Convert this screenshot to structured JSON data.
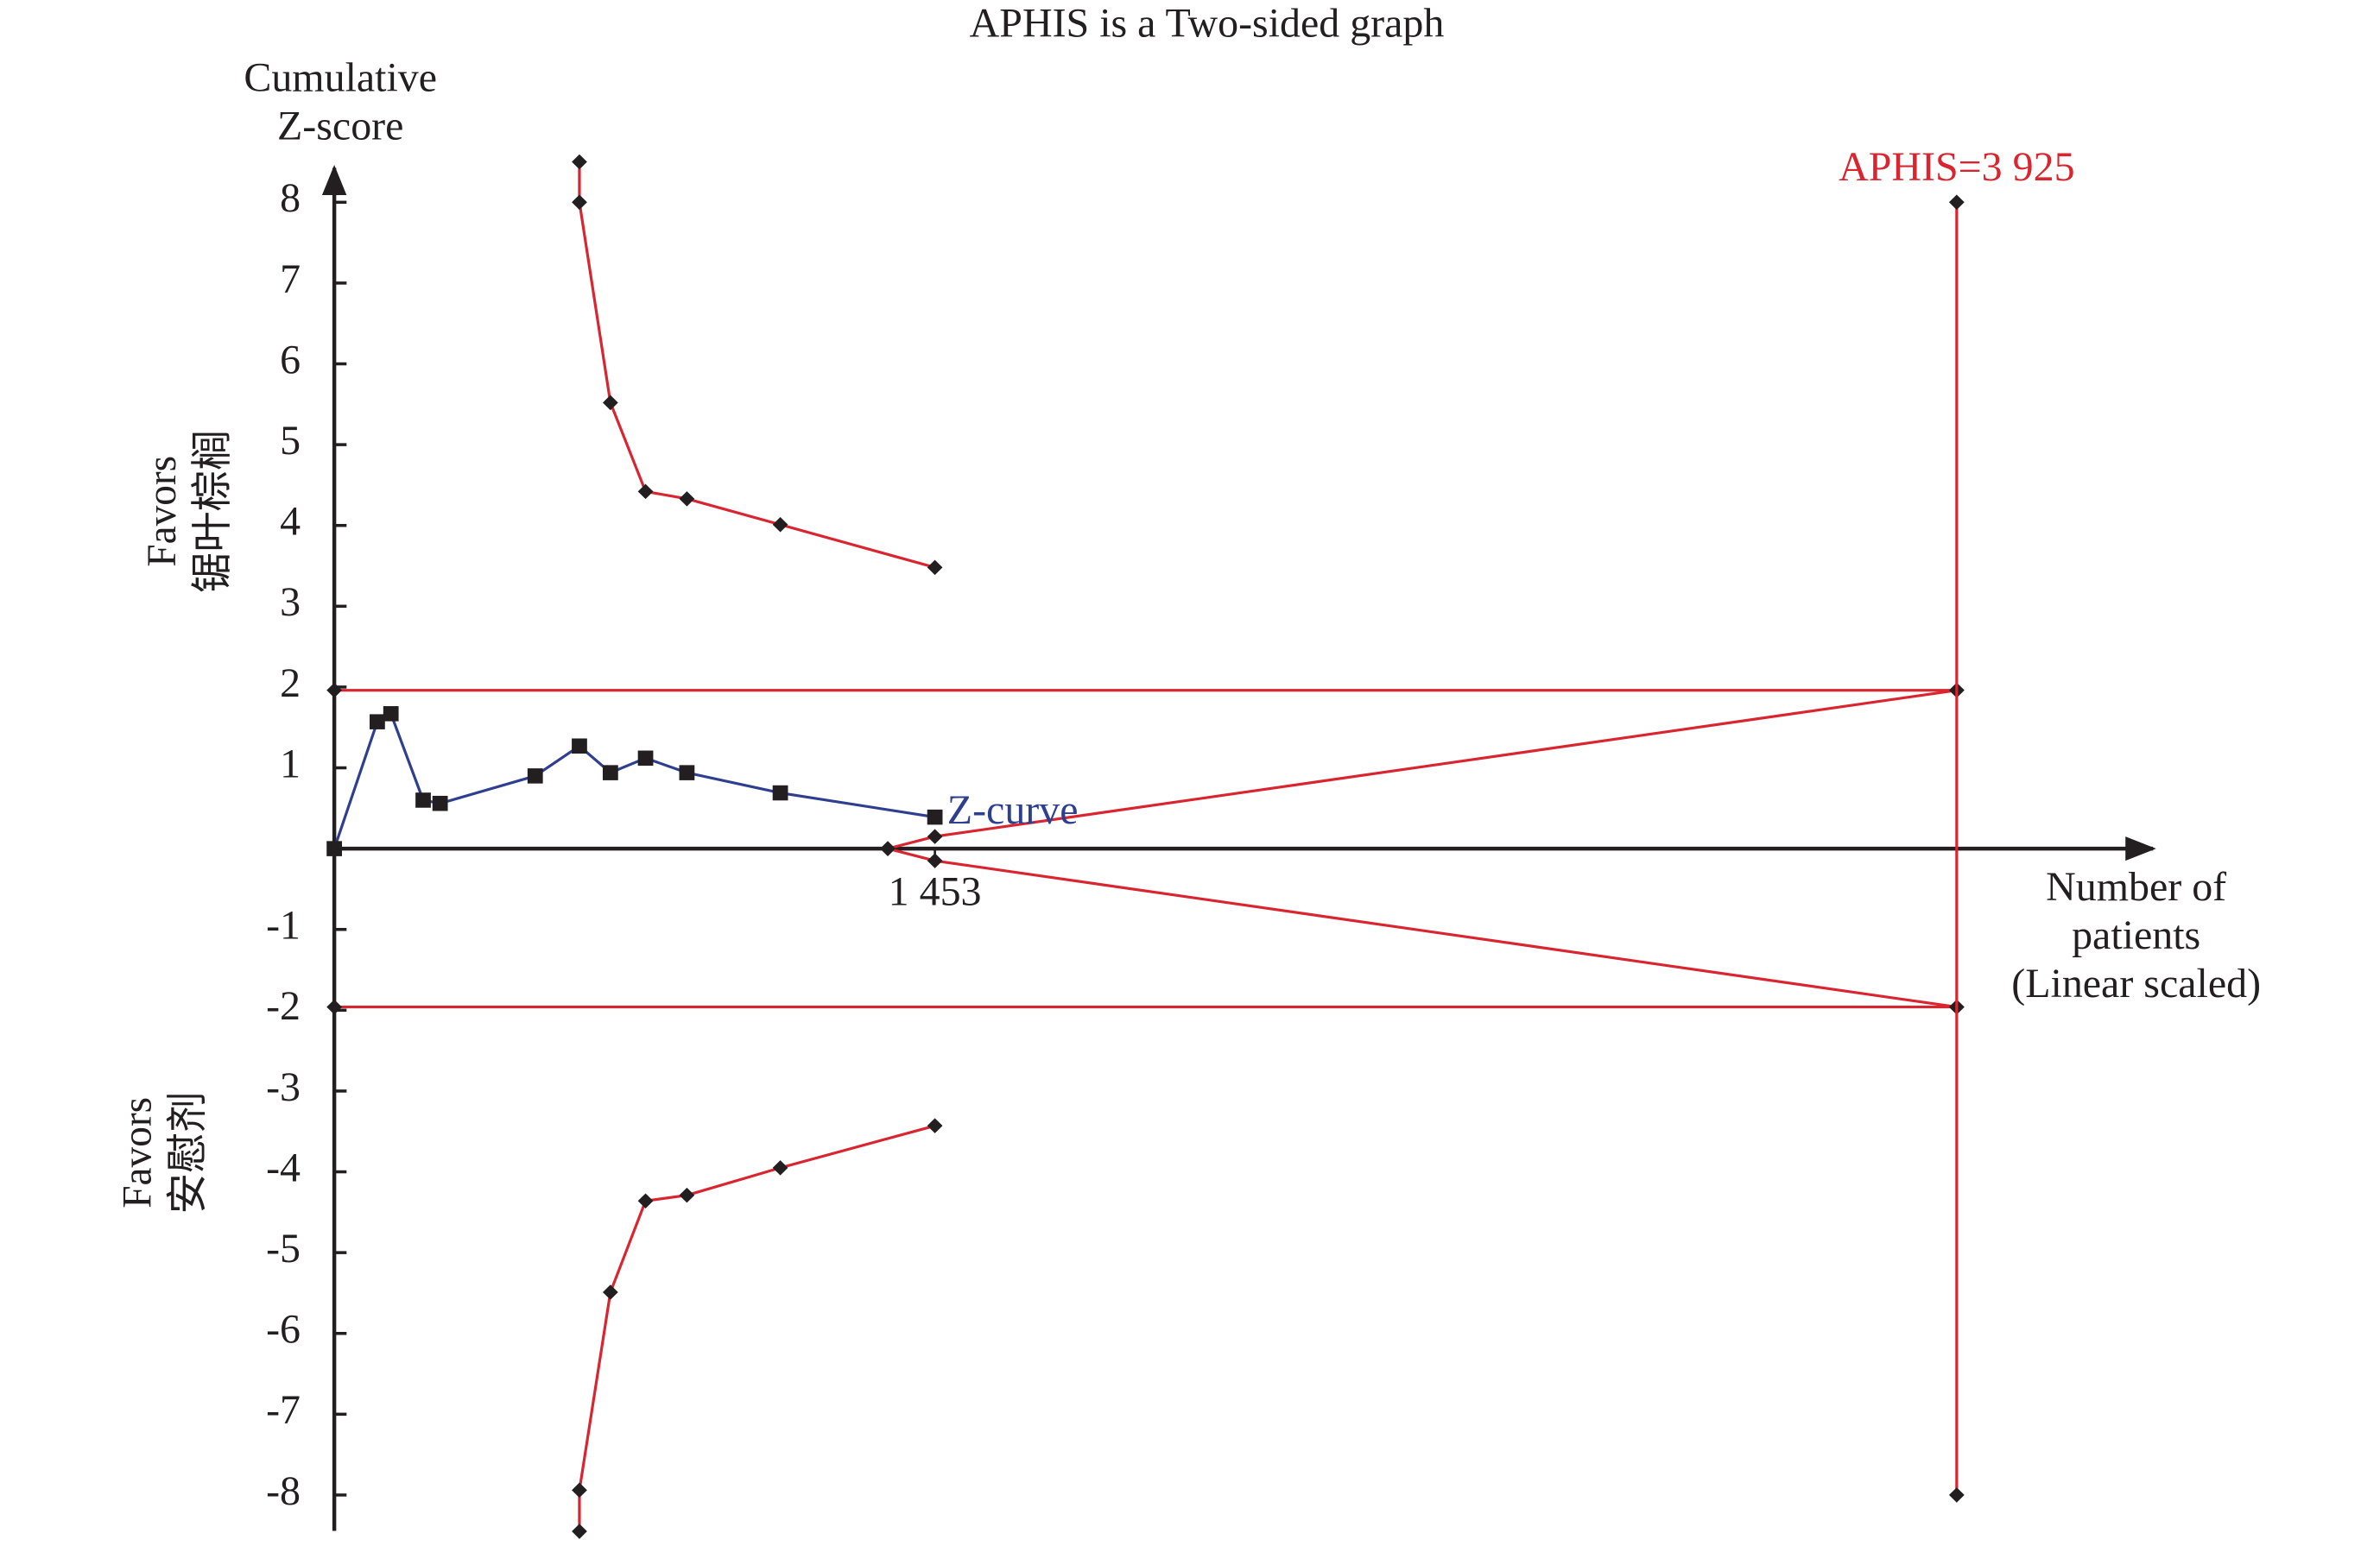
{
  "chart_data": {
    "type": "line",
    "title": "APHIS is a Two-sided graph",
    "y_label": [
      "Cumulative",
      "Z-score"
    ],
    "x_label": [
      "Number of",
      "patients",
      "(Linear scaled)"
    ],
    "annotations": {
      "upper": [
        "Favors",
        "锯叶棕榈"
      ],
      "lower": [
        "Favors",
        "安慰剂"
      ],
      "aphis": "APHIS=3 925"
    },
    "xlim": [
      0,
      4400
    ],
    "ylim": [
      -8.5,
      8.5
    ],
    "yticks": [
      -8,
      -7,
      -6,
      -5,
      -4,
      -3,
      -2,
      -1,
      1,
      2,
      3,
      4,
      5,
      6,
      7,
      8
    ],
    "xticks": [
      {
        "value": 1453,
        "label": "1 453"
      }
    ],
    "series": [
      {
        "name": "Z-curve",
        "color": "#2e3f8f",
        "marker": "square",
        "x": [
          0,
          104,
          137,
          215,
          256,
          486,
          593,
          668,
          753,
          853,
          1079,
          1453
        ],
        "values": [
          0,
          1.57,
          1.67,
          0.6,
          0.56,
          0.9,
          1.27,
          0.94,
          1.12,
          0.94,
          0.69,
          0.39
        ]
      },
      {
        "color": "#d9252f",
        "marker": "diamond",
        "x": [
          593,
          593,
          668,
          753,
          853,
          1079,
          1453
        ],
        "values": [
          8.5,
          8,
          5.52,
          4.42,
          4.33,
          4.01,
          3.48
        ]
      },
      {
        "color": "#d9252f",
        "marker": "diamond",
        "x": [
          593,
          593,
          668,
          753,
          853,
          1079,
          1453
        ],
        "values": [
          -8.45,
          -7.94,
          -5.49,
          -4.36,
          -4.29,
          -3.95,
          -3.43
        ]
      },
      {
        "color": "#d9252f",
        "marker": "diamond",
        "x": [
          1339,
          1453,
          3925
        ],
        "values": [
          0,
          0.15,
          1.96
        ]
      },
      {
        "color": "#d9252f",
        "marker": "diamond",
        "x": [
          1339,
          1453,
          3925
        ],
        "values": [
          0,
          -0.15,
          -1.96
        ]
      },
      {
        "color": "#d9252f",
        "marker": "diamond",
        "x": [
          0,
          3925
        ],
        "values": [
          1.96,
          1.96
        ]
      },
      {
        "color": "#d9252f",
        "marker": "diamond",
        "x": [
          0,
          3925
        ],
        "values": [
          -1.96,
          -1.96
        ]
      },
      {
        "color": "#d9252f",
        "marker": "diamond",
        "x": [
          3925,
          3925
        ],
        "values": [
          8,
          -8
        ]
      }
    ]
  }
}
